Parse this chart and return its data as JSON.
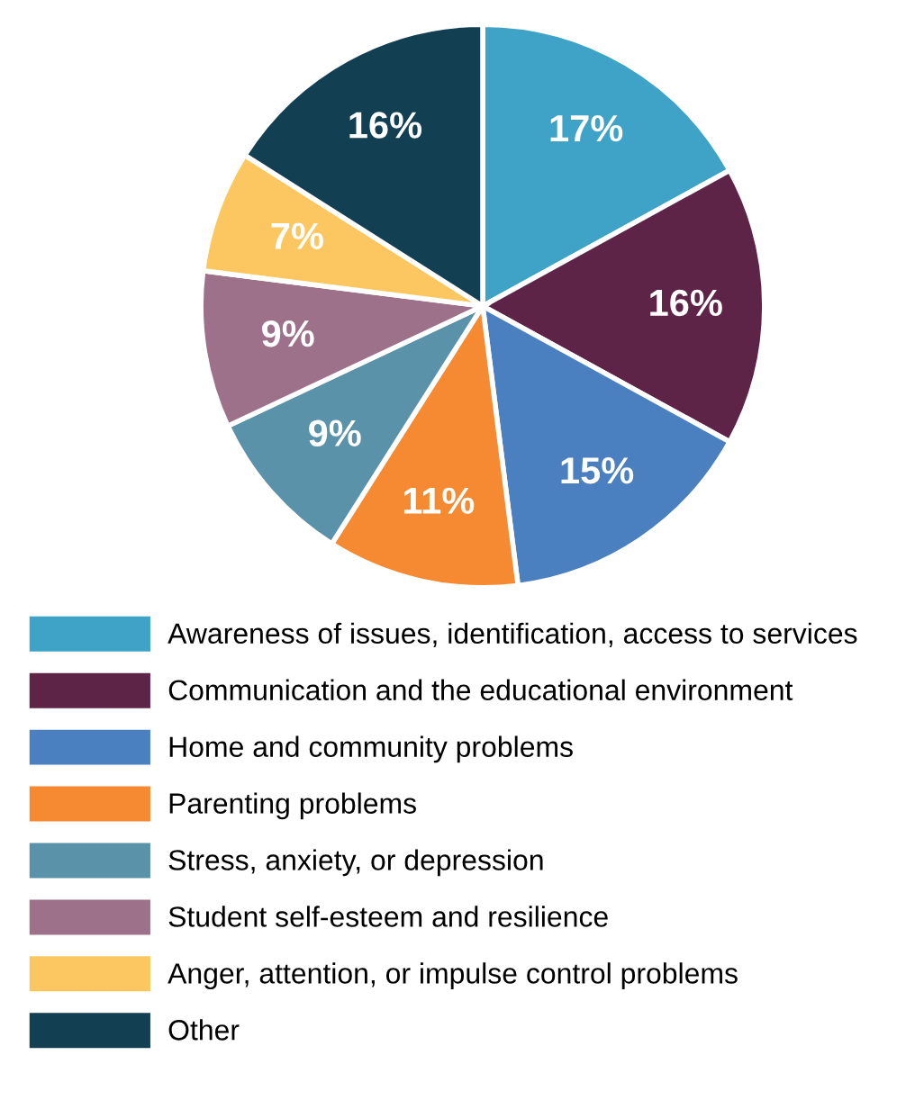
{
  "chart_data": {
    "type": "pie",
    "categories": [
      "Awareness of issues, identification, access to services",
      "Communication and the educational environment",
      "Home and community problems",
      "Parenting problems",
      "Stress, anxiety, or depression",
      "Student self-esteem and resilience",
      "Anger, attention, or impulse control problems",
      "Other"
    ],
    "values": [
      17,
      16,
      15,
      11,
      9,
      9,
      7,
      16
    ],
    "value_labels": [
      "17%",
      "16%",
      "15%",
      "11%",
      "9%",
      "9%",
      "7%",
      "16%"
    ],
    "colors": [
      "#3fa3c7",
      "#5e2447",
      "#4a7fc0",
      "#f58a32",
      "#5a93a9",
      "#9e718a",
      "#fcc760",
      "#123f52"
    ],
    "legend": "bottom"
  }
}
